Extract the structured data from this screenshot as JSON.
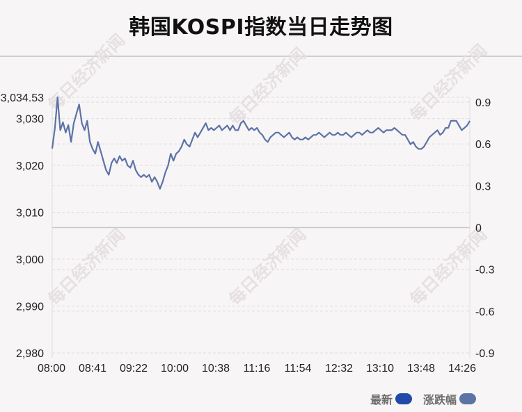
{
  "title": "韩国KOSPI指数当日走势图",
  "watermark": "每日经济新闻",
  "legend": {
    "latest_label": "最新",
    "latest_color": "#1f4aa8",
    "change_label": "涨跌幅",
    "change_color": "#5c73a6"
  },
  "chart_data": {
    "type": "line",
    "title": "韩国KOSPI指数当日走势图",
    "left_axis": {
      "min": 2980,
      "max": 3034.53,
      "ticks": [
        "3,034.53",
        "3,030",
        "3,020",
        "3,010",
        "3,000",
        "2,990",
        "2,980"
      ]
    },
    "right_axis": {
      "min": -0.9,
      "max": 0.9,
      "ticks": [
        "0.9",
        "0.6",
        "0.3",
        "0",
        "-0.3",
        "-0.6",
        "-0.9"
      ]
    },
    "x_ticks": [
      "08:00",
      "08:41",
      "09:22",
      "10:00",
      "10:38",
      "11:16",
      "11:54",
      "12:32",
      "13:10",
      "13:48",
      "14:26"
    ],
    "grid": true,
    "series": [
      {
        "values": [
          [
            0,
            3023.6
          ],
          [
            2,
            3028.0
          ],
          [
            4,
            3034.5
          ],
          [
            6,
            3027.5
          ],
          [
            8,
            3029.2
          ],
          [
            10,
            3027.0
          ],
          [
            12,
            3028.6
          ],
          [
            14,
            3025.0
          ],
          [
            16,
            3029.0
          ],
          [
            18,
            3031.0
          ],
          [
            20,
            3033.0
          ],
          [
            22,
            3029.0
          ],
          [
            24,
            3027.5
          ],
          [
            26,
            3029.5
          ],
          [
            28,
            3025.0
          ],
          [
            30,
            3023.5
          ],
          [
            32,
            3022.5
          ],
          [
            34,
            3025.0
          ],
          [
            36,
            3023.0
          ],
          [
            38,
            3021.0
          ],
          [
            40,
            3019.0
          ],
          [
            42,
            3018.0
          ],
          [
            44,
            3020.5
          ],
          [
            46,
            3021.5
          ],
          [
            48,
            3020.5
          ],
          [
            50,
            3022.0
          ],
          [
            52,
            3021.0
          ],
          [
            54,
            3021.5
          ],
          [
            56,
            3020.0
          ],
          [
            58,
            3019.5
          ],
          [
            60,
            3021.0
          ],
          [
            62,
            3019.0
          ],
          [
            64,
            3018.0
          ],
          [
            66,
            3017.5
          ],
          [
            68,
            3018.0
          ],
          [
            70,
            3017.5
          ],
          [
            72,
            3018.0
          ],
          [
            74,
            3016.5
          ],
          [
            76,
            3017.5
          ],
          [
            78,
            3016.5
          ],
          [
            80,
            3015.0
          ],
          [
            82,
            3016.5
          ],
          [
            84,
            3018.5
          ],
          [
            86,
            3020.0
          ],
          [
            88,
            3022.5
          ],
          [
            90,
            3021.0
          ],
          [
            92,
            3022.5
          ],
          [
            94,
            3023.0
          ],
          [
            96,
            3024.0
          ],
          [
            98,
            3025.5
          ],
          [
            100,
            3024.5
          ],
          [
            102,
            3024.0
          ],
          [
            104,
            3025.5
          ],
          [
            106,
            3027.0
          ],
          [
            108,
            3026.0
          ],
          [
            110,
            3027.0
          ],
          [
            112,
            3028.0
          ],
          [
            114,
            3029.0
          ],
          [
            116,
            3027.5
          ],
          [
            118,
            3028.0
          ],
          [
            120,
            3027.5
          ],
          [
            122,
            3028.0
          ],
          [
            124,
            3028.5
          ],
          [
            126,
            3027.5
          ],
          [
            128,
            3028.0
          ],
          [
            130,
            3028.5
          ],
          [
            132,
            3027.5
          ],
          [
            134,
            3028.5
          ],
          [
            136,
            3027.5
          ],
          [
            138,
            3027.5
          ],
          [
            140,
            3029.0
          ],
          [
            142,
            3029.5
          ],
          [
            144,
            3028.5
          ],
          [
            146,
            3027.5
          ],
          [
            148,
            3028.0
          ],
          [
            150,
            3027.5
          ],
          [
            152,
            3028.0
          ],
          [
            154,
            3027.0
          ],
          [
            156,
            3026.5
          ],
          [
            158,
            3025.5
          ],
          [
            160,
            3025.0
          ],
          [
            162,
            3026.0
          ],
          [
            164,
            3026.5
          ],
          [
            166,
            3027.0
          ],
          [
            168,
            3027.0
          ],
          [
            170,
            3026.5
          ],
          [
            172,
            3026.0
          ],
          [
            174,
            3026.5
          ],
          [
            176,
            3027.0
          ],
          [
            178,
            3026.0
          ],
          [
            180,
            3025.5
          ],
          [
            182,
            3026.0
          ],
          [
            184,
            3025.5
          ],
          [
            186,
            3025.5
          ],
          [
            188,
            3026.0
          ],
          [
            190,
            3025.5
          ],
          [
            192,
            3026.0
          ],
          [
            194,
            3026.5
          ],
          [
            196,
            3026.5
          ],
          [
            198,
            3027.0
          ],
          [
            200,
            3026.5
          ],
          [
            202,
            3026.0
          ],
          [
            204,
            3026.5
          ],
          [
            206,
            3027.0
          ],
          [
            208,
            3026.5
          ],
          [
            210,
            3026.5
          ],
          [
            212,
            3027.0
          ],
          [
            214,
            3026.5
          ],
          [
            216,
            3026.5
          ],
          [
            218,
            3027.0
          ],
          [
            220,
            3026.5
          ],
          [
            222,
            3026.0
          ],
          [
            224,
            3026.5
          ],
          [
            226,
            3027.0
          ],
          [
            228,
            3027.0
          ],
          [
            230,
            3026.5
          ],
          [
            232,
            3027.0
          ],
          [
            234,
            3027.5
          ],
          [
            236,
            3027.0
          ],
          [
            238,
            3027.0
          ],
          [
            240,
            3027.5
          ],
          [
            242,
            3028.0
          ],
          [
            244,
            3027.5
          ],
          [
            246,
            3027.0
          ],
          [
            248,
            3027.5
          ],
          [
            250,
            3027.5
          ],
          [
            252,
            3027.5
          ],
          [
            254,
            3028.0
          ],
          [
            256,
            3027.5
          ],
          [
            258,
            3027.0
          ],
          [
            260,
            3026.5
          ],
          [
            262,
            3026.5
          ],
          [
            264,
            3025.5
          ],
          [
            266,
            3024.5
          ],
          [
            268,
            3025.0
          ],
          [
            270,
            3024.0
          ],
          [
            272,
            3023.5
          ],
          [
            274,
            3023.5
          ],
          [
            276,
            3024.0
          ],
          [
            278,
            3025.0
          ],
          [
            280,
            3026.0
          ],
          [
            282,
            3026.5
          ],
          [
            284,
            3027.0
          ],
          [
            286,
            3027.5
          ],
          [
            288,
            3026.5
          ],
          [
            290,
            3027.0
          ],
          [
            292,
            3028.0
          ],
          [
            294,
            3028.0
          ],
          [
            296,
            3029.5
          ],
          [
            298,
            3029.5
          ],
          [
            300,
            3029.5
          ],
          [
            302,
            3028.5
          ],
          [
            304,
            3027.5
          ],
          [
            306,
            3028.0
          ],
          [
            308,
            3028.5
          ],
          [
            310,
            3029.5
          ]
        ]
      }
    ]
  }
}
